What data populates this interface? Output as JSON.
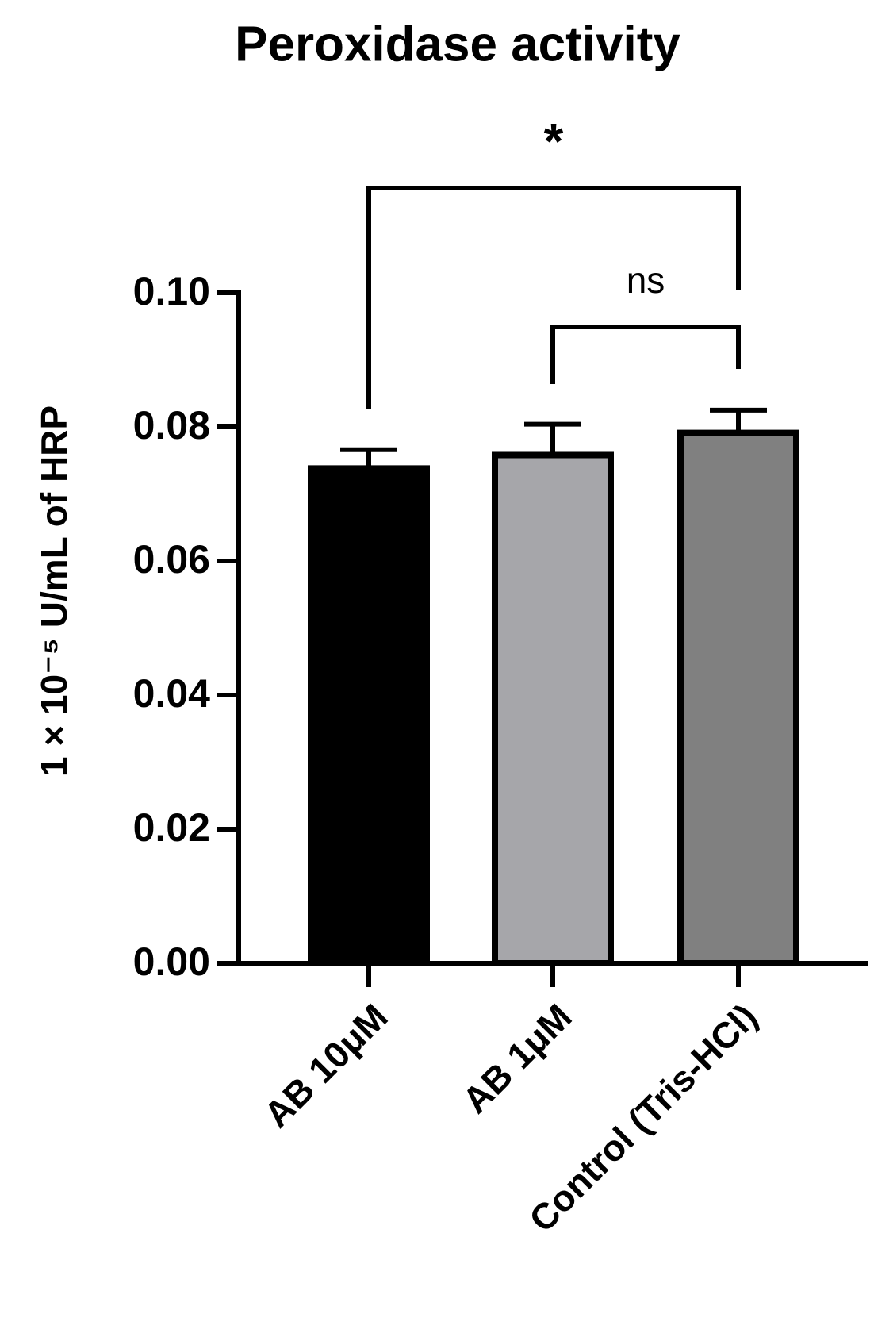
{
  "chart_data": {
    "type": "bar",
    "title": "Peroxidase activity",
    "ylabel": "1 × 10⁻⁵ U/mL of HRP",
    "categories": [
      "AB 10μM",
      "AB 1μM",
      "Control (Tris-HCl)"
    ],
    "values": [
      0.0738,
      0.0758,
      0.0791
    ],
    "errors": [
      0.0028,
      0.0046,
      0.0034
    ],
    "colors": [
      "#000000",
      "#a6a6aa",
      "#808080"
    ],
    "ylim": [
      0,
      0.1
    ],
    "yticks": [
      {
        "value": 0,
        "label": "0.00"
      },
      {
        "value": 0.02,
        "label": "0.02"
      },
      {
        "value": 0.04,
        "label": "0.04"
      },
      {
        "value": 0.06,
        "label": "0.06"
      },
      {
        "value": 0.08,
        "label": "0.08"
      },
      {
        "value": 0.1,
        "label": "0.10"
      }
    ],
    "annotations": [
      {
        "text": "*",
        "pair": [
          0,
          2
        ]
      },
      {
        "text": "ns",
        "pair": [
          1,
          2
        ]
      }
    ]
  }
}
